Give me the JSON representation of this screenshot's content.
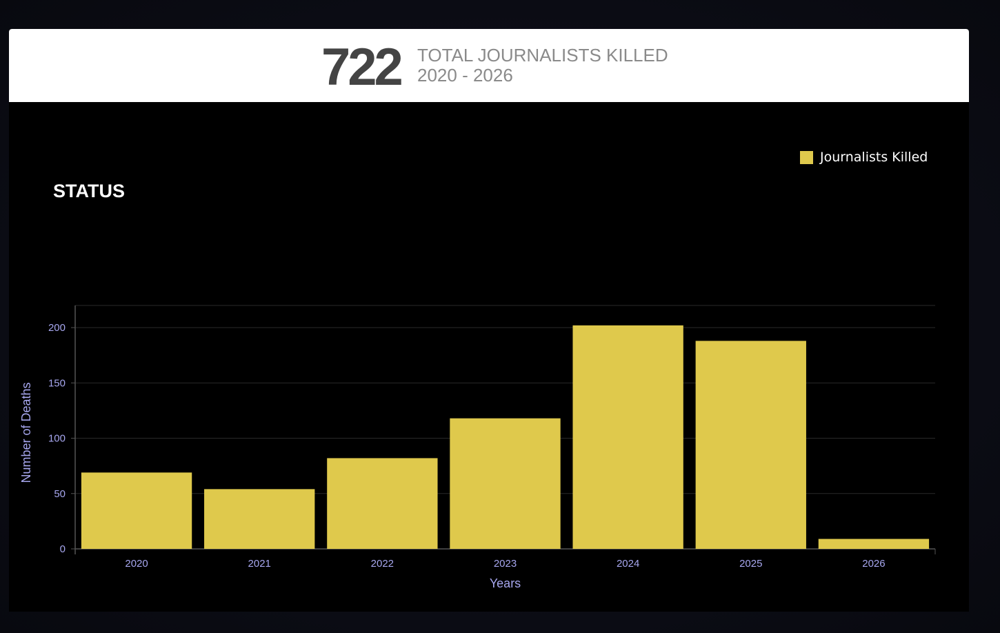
{
  "header": {
    "total": "722",
    "line1": "TOTAL JOURNALISTS KILLED",
    "line2": "2020 - 2026"
  },
  "section_title": "STATUS",
  "colors": {
    "bar": "#dfc94c",
    "axis_text": "#a7a7ef",
    "grid": "#2a2a2a",
    "background": "#000000"
  },
  "chart_data": {
    "type": "bar",
    "categories": [
      "2020",
      "2021",
      "2022",
      "2023",
      "2024",
      "2025",
      "2026"
    ],
    "series": [
      {
        "name": "Journalists Killed",
        "values": [
          69,
          54,
          82,
          118,
          202,
          188,
          9
        ]
      }
    ],
    "xlabel": "Years",
    "ylabel": "Number of Deaths",
    "ylim": [
      0,
      220
    ],
    "yticks": [
      0,
      50,
      100,
      150,
      200
    ],
    "grid": true,
    "legend_position": "top-right"
  }
}
